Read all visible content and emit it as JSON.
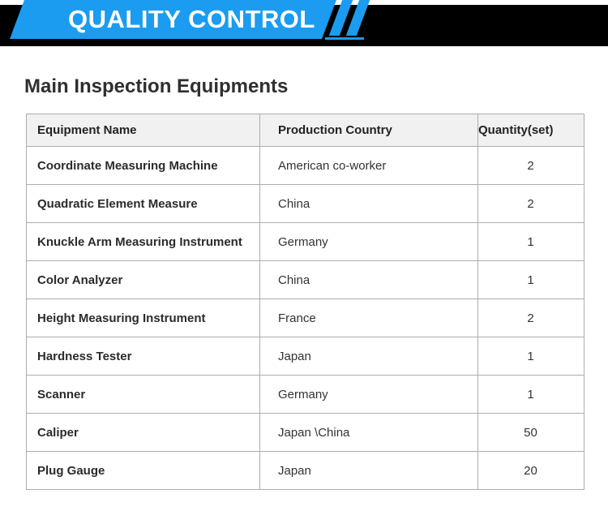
{
  "header": {
    "banner_label": "QUALITY CONTROL",
    "colors": {
      "accent_blue": "#1b9cf0",
      "bar_black": "#000000"
    }
  },
  "main": {
    "title": "Main Inspection Equipments",
    "table": {
      "columns": [
        "Equipment Name",
        "Production Country",
        "Quantity(set)"
      ],
      "rows": [
        {
          "name": "Coordinate Measuring Machine",
          "country": "American co-worker",
          "qty": "2"
        },
        {
          "name": "Quadratic Element Measure",
          "country": "China",
          "qty": "2"
        },
        {
          "name": "Knuckle Arm Measuring Instrument",
          "country": "Germany",
          "qty": "1"
        },
        {
          "name": "Color Analyzer",
          "country": "China",
          "qty": "1"
        },
        {
          "name": "Height Measuring Instrument",
          "country": "France",
          "qty": "2"
        },
        {
          "name": "Hardness Tester",
          "country": "Japan",
          "qty": "1"
        },
        {
          "name": "Scanner",
          "country": "Germany",
          "qty": "1"
        },
        {
          "name": "Caliper",
          "country": "Japan \\China",
          "qty": "50"
        },
        {
          "name": "Plug Gauge",
          "country": "Japan",
          "qty": "20"
        }
      ]
    }
  }
}
